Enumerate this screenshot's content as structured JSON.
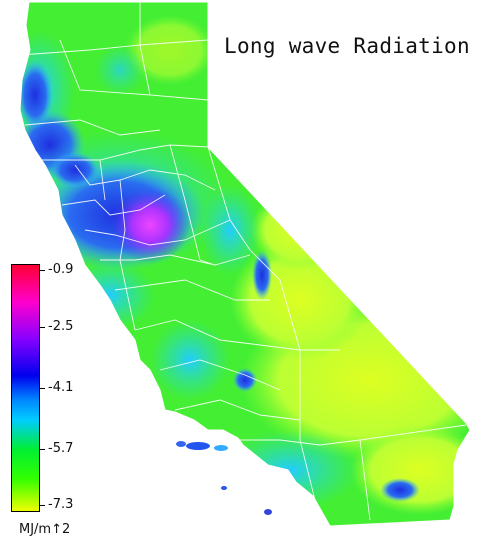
{
  "title": "Long wave Radiation",
  "colorbar": {
    "unit": "MJ/m↑2",
    "ticks": [
      "-0.9",
      "-2.5",
      "-4.1",
      "-5.7",
      "-7.3"
    ],
    "tick_values": [
      -0.9,
      -2.5,
      -4.1,
      -5.7,
      -7.3
    ],
    "range": [
      -7.3,
      -0.9
    ],
    "colors_top_to_bottom": [
      "#ff0033",
      "#ff00cc",
      "#8800ff",
      "#0000ee",
      "#00ccff",
      "#00ee33",
      "#33ff00",
      "#eeff00"
    ]
  },
  "region": "California",
  "colors": {
    "background": "#ffffff",
    "county_lines": "#ffffff",
    "high_negative": "#eeff00",
    "mid": "#33ee33",
    "low_negative": "#0000ee",
    "extreme": "#ff00cc"
  }
}
